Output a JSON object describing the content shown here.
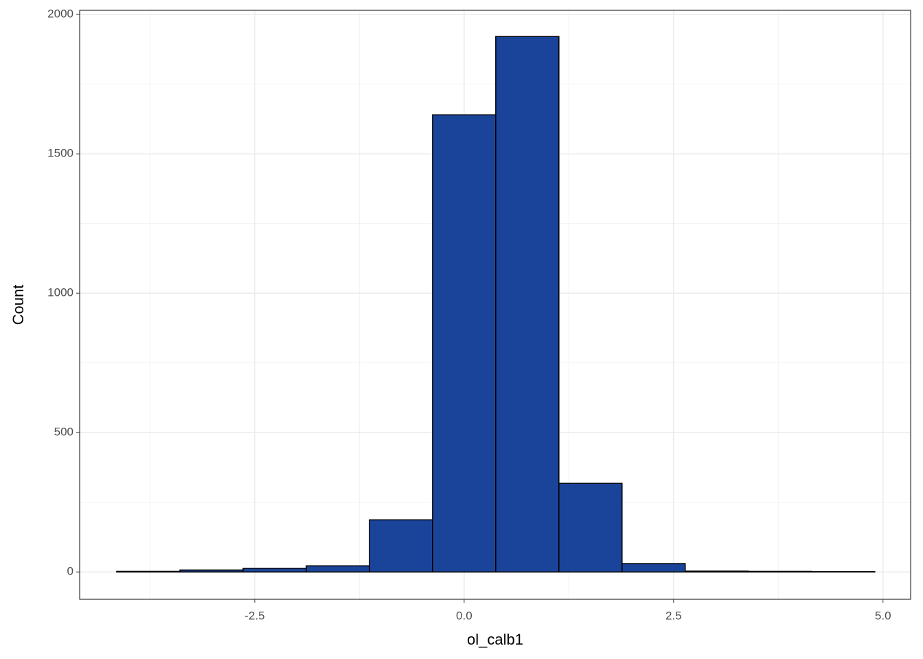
{
  "chart_data": {
    "type": "histogram",
    "x_label": "ol_calb1",
    "y_label": "Count",
    "bins": [
      -4.148,
      -3.393,
      -2.639,
      -1.885,
      -1.131,
      -0.377,
      0.377,
      1.131,
      1.885,
      2.639,
      3.393,
      4.148,
      4.902
    ],
    "counts": [
      2,
      7,
      13,
      22,
      187,
      1640,
      1921,
      318,
      30,
      3,
      2,
      1
    ],
    "color": "#1a4499",
    "edge_color": "#000000",
    "xlim": [
      -4.59,
      5.33
    ],
    "ylim": [
      -98,
      2015
    ],
    "xticks": [
      {
        "value": -2.5,
        "label": "-2.5"
      },
      {
        "value": 0,
        "label": "0.0"
      },
      {
        "value": 2.5,
        "label": "2.5"
      },
      {
        "value": 5,
        "label": "5.0"
      }
    ],
    "yticks": [
      0,
      500,
      1000,
      1500,
      2000
    ],
    "x_minor_ticks": [
      -3.75,
      -1.25,
      1.25,
      3.75
    ],
    "y_minor_ticks": [
      250,
      750,
      1250,
      1750
    ],
    "grid": true
  }
}
